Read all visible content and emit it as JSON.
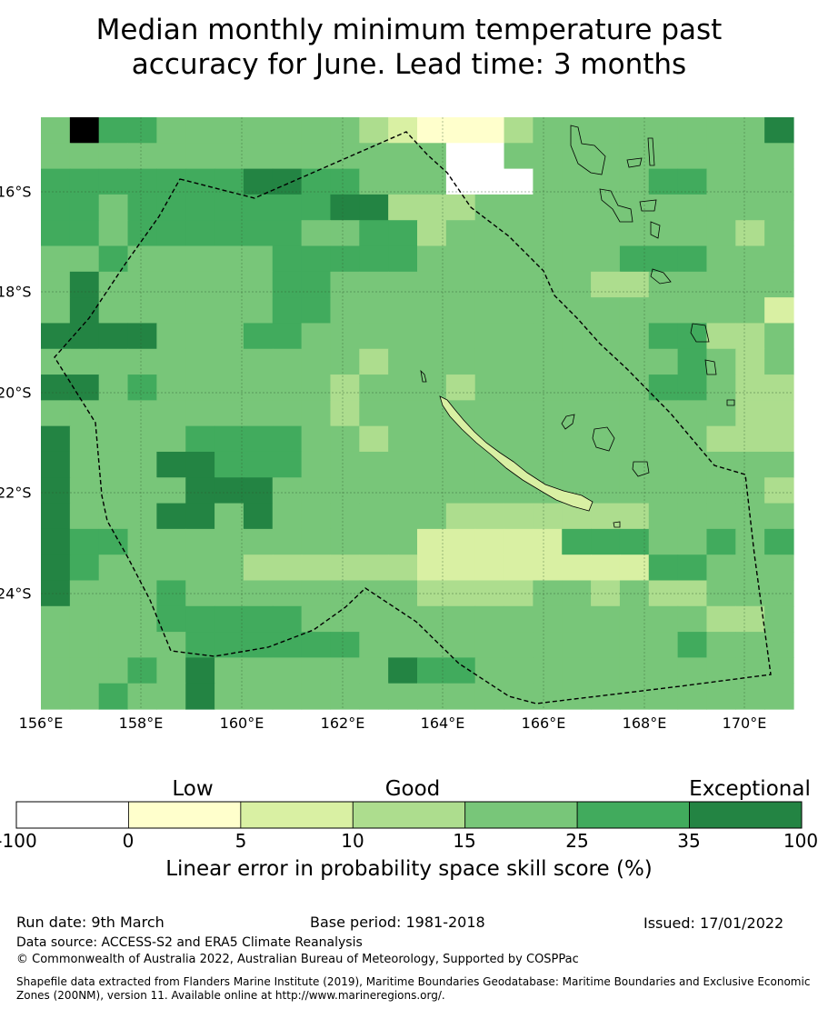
{
  "title_line1": "Median monthly minimum temperature past",
  "title_line2": "accuracy for June. Lead time: 3 months",
  "map": {
    "lon_labels": [
      "156°E",
      "158°E",
      "160°E",
      "162°E",
      "164°E",
      "166°E",
      "168°E",
      "170°E"
    ],
    "lat_labels": [
      "16°S",
      "18°S",
      "20°S",
      "22°S",
      "24°S"
    ],
    "gridlines": true,
    "boundary": "dashed maritime boundary (New Caledonia EEZ)",
    "coastlines": [
      "New Caledonia",
      "Loyalty Islands",
      "Vanuatu"
    ]
  },
  "colorbar": {
    "category_labels": [
      "Low",
      "Good",
      "Exceptional"
    ],
    "ticks": [
      "-100",
      "0",
      "5",
      "10",
      "15",
      "25",
      "35",
      "100"
    ],
    "colors": [
      "#ffffff",
      "#ffffcc",
      "#d9f0a3",
      "#addd8e",
      "#78c679",
      "#41ab5d",
      "#238443"
    ],
    "title": "Linear error in probability space skill score (%)"
  },
  "footer": {
    "run_date": "Run date: 9th March",
    "base_period": "Base period: 1981-2018",
    "issued": "Issued: 17/01/2022",
    "data_source": "Data source: ACCESS-S2 and ERA5 Climate Reanalysis",
    "copyright": "© Commonwealth of Australia 2022, Australian Bureau of Meteorology, Supported by COSPPac",
    "shapefile_line1": "Shapefile data extracted from Flanders Marine Institute (2019), Maritime Boundaries Geodatabase: Maritime Boundaries and Exclusive Economic",
    "shapefile_line2": "Zones (200NM), version 11. Available online at http://www.marineregions.org/."
  },
  "grid_cells": [
    "47554444444321113444444446",
    "44444444444444004444444444",
    "55555556655444000444455444",
    "55455555556633344444444444",
    "55455555544553444444444434",
    "44544444555554444444555444",
    "46444444554444444443344444",
    "46444444554444444444444442",
    "66664445544444444444455334",
    "44444444444344444444445434",
    "66454444443444344444455433",
    "44444444443444444444444433",
    "64444555544344444444444333",
    "64446655544444444444444444",
    "64444666444444444444444443",
    "64446646444444333333344444",
    "65544444444442222255544545",
    "65444443333332222222255444",
    "64445444444443333443433444",
    "44445555544444444444444334",
    "44444555555444444444445444",
    "44454644444465544444444444",
    "44544644444444444444444444"
  ]
}
